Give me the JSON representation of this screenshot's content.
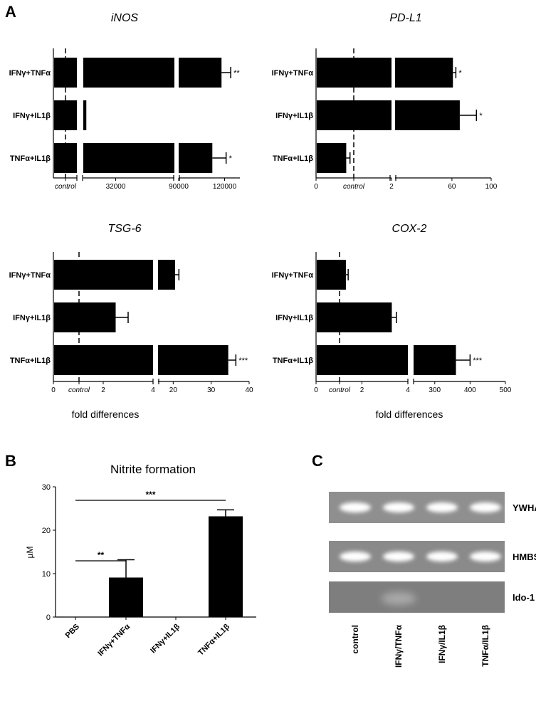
{
  "panel_letters": {
    "A": "A",
    "B": "B",
    "C": "C"
  },
  "x_axis_label": "fold differences",
  "control_label": "control",
  "chart_data": [
    {
      "id": "iNOS",
      "type": "bar",
      "orientation": "horizontal",
      "title": "iNOS",
      "categories": [
        "IFNγ+TNFα",
        "IFNγ+IL1β",
        "TNFα+IL1β"
      ],
      "values": [
        118000,
        3000,
        112000
      ],
      "errors": [
        6000,
        0,
        9000
      ],
      "significance": [
        "**",
        "",
        "*"
      ],
      "control_value": 1,
      "x_tick_labels": [
        "32000",
        "90000",
        "120000"
      ],
      "xlabel": ""
    },
    {
      "id": "PD-L1",
      "type": "bar",
      "orientation": "horizontal",
      "title": "PD-L1",
      "categories": [
        "IFNγ+TNFα",
        "IFNγ+IL1β",
        "TNFα+IL1β"
      ],
      "values": [
        61,
        68,
        0.8
      ],
      "errors": [
        3,
        17,
        0.1
      ],
      "significance": [
        "*",
        "*",
        ""
      ],
      "control_value": 1,
      "x_tick_labels": [
        "0",
        "2",
        "60",
        "100"
      ],
      "xlabel": ""
    },
    {
      "id": "TSG-6",
      "type": "bar",
      "orientation": "horizontal",
      "title": "TSG-6",
      "categories": [
        "IFNγ+TNFα",
        "IFNγ+IL1β",
        "TNFα+IL1β"
      ],
      "values": [
        20.5,
        2.5,
        34.5
      ],
      "errors": [
        1,
        0.5,
        2
      ],
      "significance": [
        "",
        "",
        "***"
      ],
      "control_value": 1,
      "x_tick_labels": [
        "0",
        "2",
        "4",
        "20",
        "30",
        "40"
      ],
      "xlabel": "fold differences"
    },
    {
      "id": "COX-2",
      "type": "bar",
      "orientation": "horizontal",
      "title": "COX-2",
      "categories": [
        "IFNγ+TNFα",
        "IFNγ+IL1β",
        "TNFα+IL1β"
      ],
      "values": [
        1.3,
        3.3,
        360
      ],
      "errors": [
        0.1,
        0.2,
        40
      ],
      "significance": [
        "",
        "",
        "***"
      ],
      "control_value": 1,
      "x_tick_labels": [
        "0",
        "2",
        "4",
        "300",
        "400",
        "500"
      ],
      "xlabel": "fold differences"
    },
    {
      "id": "nitrite",
      "type": "bar",
      "orientation": "vertical",
      "title": "Nitrite formation",
      "categories": [
        "PBS",
        "IFNγ+TNFα",
        "IFNγ+IL1β",
        "TNFα+IL1β"
      ],
      "values": [
        0,
        9.1,
        0,
        23.2
      ],
      "errors": [
        0,
        4.1,
        0,
        1.5
      ],
      "ylabel": "µM",
      "ylim": [
        0,
        30
      ],
      "y_ticks": [
        "0",
        "10",
        "20",
        "30"
      ],
      "comparisons": [
        {
          "from": "PBS",
          "to": "IFNγ+TNFα",
          "label": "**"
        },
        {
          "from": "PBS",
          "to": "TNFα+IL1β",
          "label": "***"
        }
      ]
    }
  ],
  "gel": {
    "genes": [
      "YWHAZ",
      "HMBS",
      "Ido-1"
    ],
    "lanes": [
      "control",
      "IFNγ/TNFα",
      "IFNγ/IL1β",
      "TNFα/IL1β"
    ],
    "colors": {
      "row1": "#8f8f8f",
      "row2": "#8a8a8a",
      "row3": "#7e7e7e",
      "band": "#ffffff"
    }
  }
}
